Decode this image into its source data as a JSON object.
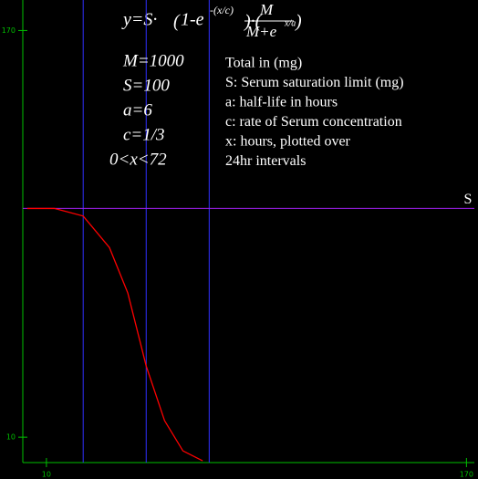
{
  "chart_data": {
    "type": "line",
    "formula": {
      "lhs": "y=S·",
      "base1": "1-e",
      "exp1": "-(x/c)",
      "numerator": "M",
      "denominator": "M+e",
      "exp2": "x/a"
    },
    "parameters": [
      "M=1000",
      "S=100",
      "a=6",
      "c=1/3",
      "0<x<72"
    ],
    "notes": [
      "Total in (mg)",
      "S: Serum saturation limit (mg)",
      "a: half-life in hours",
      "c: rate of Serum concentration",
      "x: hours, plotted over",
      "24hr intervals"
    ],
    "x": [
      2.7,
      13,
      24,
      34,
      41,
      48,
      55,
      62,
      69.5
    ],
    "series": [
      {
        "color": "#ff0000",
        "values": [
          100,
          100,
          97,
          84.6,
          66.7,
          38,
          16.5,
          4.6,
          0.7
        ]
      }
    ],
    "hline": {
      "value": 100,
      "label": "S",
      "color": "#a020f0"
    },
    "vlines": {
      "values": [
        24,
        48,
        72
      ],
      "color": "#3030ff"
    },
    "xlim": [
      1,
      173
    ],
    "ylim": [
      0,
      182
    ],
    "xticks": [
      10,
      170
    ],
    "yticks": [
      10,
      170
    ],
    "axis_color": "#00c000"
  }
}
